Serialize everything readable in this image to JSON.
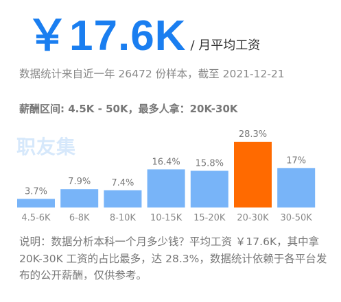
{
  "header": {
    "amount": "￥17.6K",
    "unit": "/ 月平均工资"
  },
  "sample_text": "数据统计来自近一年 26472 份样本，截至 2021-12-21",
  "range_text": "薪酬区间: 4.5K - 50K，最多人拿：20K-30K",
  "watermark": "职友集",
  "note": "说明：数据分析本科一个月多少钱？平均工资 ￥17.6K，其中拿 20K-30K 工资的占比最多，达 28.3%，数据统计依赖于各平台发布的公开薪酬，仅供参考。",
  "colors": {
    "bar": "#78b4f8",
    "highlight": "#ff6a00",
    "accent": "#1a7ef0"
  },
  "chart_data": {
    "type": "bar",
    "title": "",
    "xlabel": "",
    "ylabel": "",
    "categories": [
      "4.5-6K",
      "6-8K",
      "8-10K",
      "10-15K",
      "15-20K",
      "20-30K",
      "30-50K"
    ],
    "values": [
      3.7,
      7.9,
      7.4,
      16.4,
      15.8,
      28.3,
      17
    ],
    "value_labels": [
      "3.7%",
      "7.9%",
      "7.4%",
      "16.4%",
      "15.8%",
      "28.3%",
      "17%"
    ],
    "highlight_index": 5,
    "ylim": [
      0,
      28.3
    ],
    "grid": false,
    "legend": "none"
  }
}
